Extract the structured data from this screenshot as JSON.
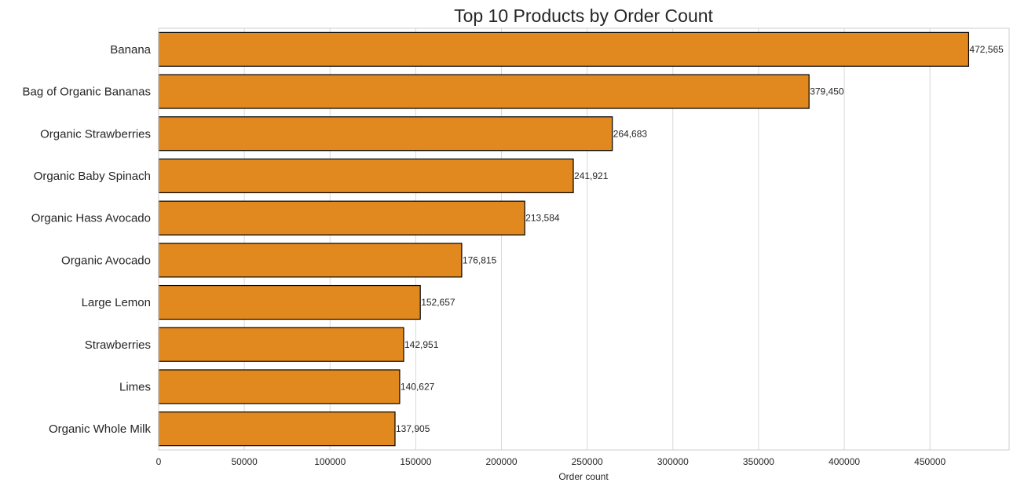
{
  "chart_data": {
    "type": "bar",
    "orientation": "horizontal",
    "title": "Top 10 Products by Order Count",
    "xlabel": "Order count",
    "ylabel": "",
    "categories": [
      "Banana",
      "Bag of Organic Bananas",
      "Organic Strawberries",
      "Organic Baby Spinach",
      "Organic Hass Avocado",
      "Organic Avocado",
      "Large Lemon",
      "Strawberries",
      "Limes",
      "Organic Whole Milk"
    ],
    "values": [
      472565,
      379450,
      264683,
      241921,
      213584,
      176815,
      152657,
      142951,
      140627,
      137905
    ],
    "data_labels": [
      "472,565",
      "379,450",
      "264,683",
      "241,921",
      "213,584",
      "176,815",
      "152,657",
      "142,951",
      "140,627",
      "137,905"
    ],
    "xlim": [
      0,
      496193
    ],
    "xticks": [
      0,
      50000,
      100000,
      150000,
      200000,
      250000,
      300000,
      350000,
      400000,
      450000
    ],
    "xtick_labels": [
      "0",
      "50000",
      "100000",
      "150000",
      "200000",
      "250000",
      "300000",
      "350000",
      "400000",
      "450000"
    ],
    "grid": "vertical",
    "legend": "none",
    "colors": {
      "bar_fill": "#e1891f",
      "bar_edge": "#000000",
      "grid": "#d9d9d9",
      "frame": "#cccccc",
      "text": "#262626"
    }
  }
}
